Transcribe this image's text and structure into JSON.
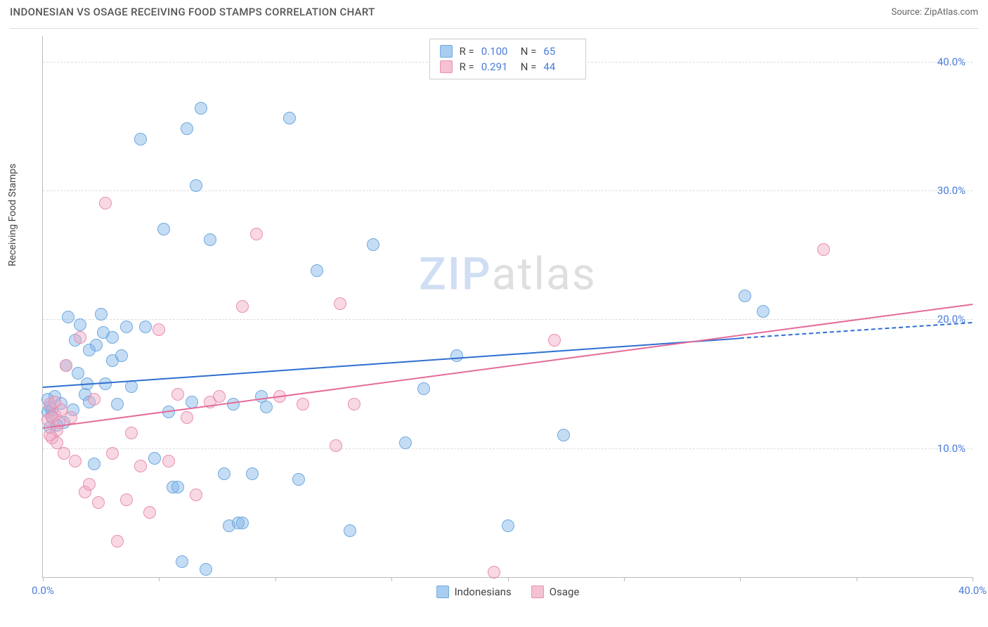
{
  "header": {
    "title": "INDONESIAN VS OSAGE RECEIVING FOOD STAMPS CORRELATION CHART",
    "source": "Source: ZipAtlas.com"
  },
  "chart": {
    "type": "scatter",
    "ylabel": "Receiving Food Stamps",
    "xlim": [
      0,
      40
    ],
    "ylim": [
      0,
      42
    ],
    "x_ticks": [
      0,
      5,
      10,
      15,
      20,
      25,
      30,
      35,
      40
    ],
    "x_tick_labels": {
      "0": "0.0%",
      "40": "40.0%"
    },
    "y_gridlines": [
      10,
      20,
      30,
      40
    ],
    "y_tick_labels": {
      "10": "10.0%",
      "20": "20.0%",
      "30": "30.0%",
      "40": "40.0%"
    },
    "background_color": "#ffffff",
    "grid_color": "#dddddd",
    "axis_color": "#bbbbbb",
    "tick_label_color": "#4a7dd8",
    "watermark": {
      "part1": "ZIP",
      "part2": "atlas"
    },
    "legend_top": [
      {
        "swatch_fill": "#a8cdf0",
        "swatch_border": "#6fa9e0",
        "r_label": "R =",
        "r_value": "0.100",
        "n_label": "N =",
        "n_value": "65"
      },
      {
        "swatch_fill": "#f5c2d2",
        "swatch_border": "#e98fb0",
        "r_label": "R =",
        "r_value": "0.291",
        "n_label": "N =",
        "n_value": "44"
      }
    ],
    "legend_bottom": [
      {
        "swatch_fill": "#a8cdf0",
        "swatch_border": "#6fa9e0",
        "label": "Indonesians"
      },
      {
        "swatch_fill": "#f5c2d2",
        "swatch_border": "#e98fb0",
        "label": "Osage"
      }
    ],
    "series": [
      {
        "name": "Indonesians",
        "marker_fill": "rgba(126,179,230,0.45)",
        "marker_border": "#6fa9e0",
        "marker_radius": 9,
        "trend": {
          "x1": 0,
          "y1": 14.8,
          "x2": 30,
          "y2": 18.6,
          "color": "#2f6fd0",
          "dash_extend_x": 40,
          "dash_extend_y": 19.8
        },
        "points": [
          [
            0.3,
            13.2
          ],
          [
            0.4,
            12.5
          ],
          [
            0.5,
            14.0
          ],
          [
            0.6,
            11.8
          ],
          [
            0.8,
            13.5
          ],
          [
            0.9,
            12.0
          ],
          [
            1.0,
            16.4
          ],
          [
            1.1,
            20.2
          ],
          [
            1.3,
            13.0
          ],
          [
            1.4,
            18.4
          ],
          [
            1.5,
            15.8
          ],
          [
            1.6,
            19.6
          ],
          [
            1.8,
            14.2
          ],
          [
            1.9,
            15.0
          ],
          [
            2.0,
            17.6
          ],
          [
            2.0,
            13.6
          ],
          [
            2.2,
            8.8
          ],
          [
            2.3,
            18.0
          ],
          [
            2.5,
            20.4
          ],
          [
            2.6,
            19.0
          ],
          [
            2.7,
            15.0
          ],
          [
            3.0,
            16.8
          ],
          [
            3.0,
            18.6
          ],
          [
            3.2,
            13.4
          ],
          [
            3.4,
            17.2
          ],
          [
            3.6,
            19.4
          ],
          [
            3.8,
            14.8
          ],
          [
            4.2,
            34.0
          ],
          [
            4.4,
            19.4
          ],
          [
            4.8,
            9.2
          ],
          [
            5.2,
            27.0
          ],
          [
            5.4,
            12.8
          ],
          [
            5.6,
            7.0
          ],
          [
            5.8,
            7.0
          ],
          [
            6.0,
            1.2
          ],
          [
            6.2,
            34.8
          ],
          [
            6.4,
            13.6
          ],
          [
            6.6,
            30.4
          ],
          [
            6.8,
            36.4
          ],
          [
            7.0,
            0.6
          ],
          [
            7.2,
            26.2
          ],
          [
            7.8,
            8.0
          ],
          [
            8.0,
            4.0
          ],
          [
            8.2,
            13.4
          ],
          [
            8.4,
            4.2
          ],
          [
            8.6,
            4.2
          ],
          [
            9.0,
            8.0
          ],
          [
            9.4,
            14.0
          ],
          [
            9.6,
            13.2
          ],
          [
            10.6,
            35.6
          ],
          [
            11.0,
            7.6
          ],
          [
            11.8,
            23.8
          ],
          [
            13.2,
            3.6
          ],
          [
            14.2,
            25.8
          ],
          [
            15.6,
            10.4
          ],
          [
            16.4,
            14.6
          ],
          [
            17.8,
            17.2
          ],
          [
            20.0,
            4.0
          ],
          [
            22.4,
            11.0
          ],
          [
            30.2,
            21.8
          ],
          [
            31.0,
            20.6
          ],
          [
            0.2,
            13.8
          ],
          [
            0.2,
            12.8
          ],
          [
            0.3,
            11.6
          ],
          [
            0.4,
            13.0
          ]
        ]
      },
      {
        "name": "Osage",
        "marker_fill": "rgba(240,168,195,0.45)",
        "marker_border": "#e98fb0",
        "marker_radius": 9,
        "trend": {
          "x1": 0,
          "y1": 11.6,
          "x2": 40,
          "y2": 21.2,
          "color": "#e56a9a"
        },
        "points": [
          [
            0.2,
            12.2
          ],
          [
            0.3,
            13.4
          ],
          [
            0.4,
            10.8
          ],
          [
            0.5,
            12.6
          ],
          [
            0.6,
            11.4
          ],
          [
            0.8,
            13.0
          ],
          [
            0.9,
            9.6
          ],
          [
            1.0,
            16.4
          ],
          [
            1.2,
            12.4
          ],
          [
            1.4,
            9.0
          ],
          [
            1.6,
            18.6
          ],
          [
            1.8,
            6.6
          ],
          [
            2.0,
            7.2
          ],
          [
            2.2,
            13.8
          ],
          [
            2.4,
            5.8
          ],
          [
            2.7,
            29.0
          ],
          [
            3.0,
            9.6
          ],
          [
            3.2,
            2.8
          ],
          [
            3.6,
            6.0
          ],
          [
            3.8,
            11.2
          ],
          [
            4.2,
            8.6
          ],
          [
            4.6,
            5.0
          ],
          [
            5.0,
            19.2
          ],
          [
            5.4,
            9.0
          ],
          [
            5.8,
            14.2
          ],
          [
            6.2,
            12.4
          ],
          [
            6.6,
            6.4
          ],
          [
            7.2,
            13.6
          ],
          [
            7.6,
            14.0
          ],
          [
            8.6,
            21.0
          ],
          [
            9.2,
            26.6
          ],
          [
            10.2,
            14.0
          ],
          [
            11.2,
            13.4
          ],
          [
            12.6,
            10.2
          ],
          [
            12.8,
            21.2
          ],
          [
            13.4,
            13.4
          ],
          [
            19.4,
            0.4
          ],
          [
            22.0,
            18.4
          ],
          [
            33.6,
            25.4
          ],
          [
            0.3,
            11.0
          ],
          [
            0.4,
            12.4
          ],
          [
            0.5,
            13.6
          ],
          [
            0.6,
            10.4
          ],
          [
            0.7,
            12.0
          ]
        ]
      }
    ]
  }
}
